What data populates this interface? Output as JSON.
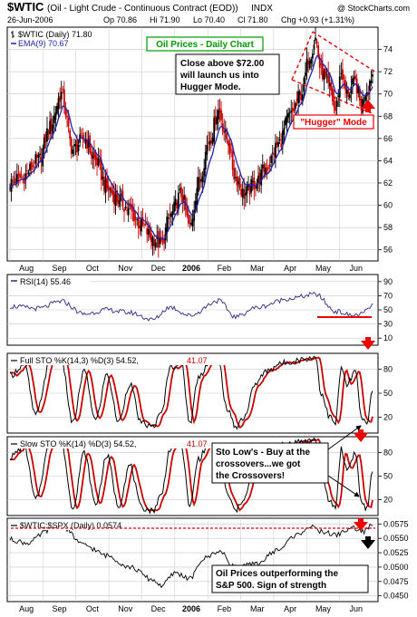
{
  "header": {
    "symbol": "$WTIC",
    "name": "(Oil - Light Crude - Continuous Contract (EOD))",
    "exchange": "INDX",
    "copyright": "@ StockCharts.com",
    "date": "26-Jun-2006",
    "open": "Op 70.86",
    "high": "Hi 71.90",
    "low": "Lo 70.40",
    "close": "Cl 71.80",
    "change": "Chg +0.93 (+1.31%)"
  },
  "price_panel": {
    "legend_main": "$WTIC (Daily) 71.80",
    "legend_ema": "EMA(9) 70.67",
    "title_box": "Oil Prices - Daily Chart",
    "note_lines": [
      "Close above $72.00",
      "will launch us into",
      "Hugger Mode."
    ],
    "hugger_label": "\"Hugger\" Mode"
  },
  "rsi_panel": {
    "legend": "RSI(14) 55.46"
  },
  "full_sto_panel": {
    "legend": "Full STO %K(14,3) %D(3) 54.52,",
    "legend_d": "41.07"
  },
  "slow_sto_panel": {
    "legend": "Slow STO %K(14) %D(3) 54.52,",
    "legend_d": "41.07",
    "note_lines": [
      "Sto Low's - Buy at the",
      "crossovers...we got",
      "the Crossovers!"
    ]
  },
  "ratio_panel": {
    "legend": "$WTIC:$SPX (Daily) 0.0574",
    "note_lines": [
      "Oil Prices outperforming the",
      "S&P 500.  Sign of strength"
    ]
  },
  "colors": {
    "up": "#000000",
    "down": "#cc0000",
    "ema": "#2222aa",
    "grid": "#c8c8c8",
    "accent_red": "#ee0000",
    "title_green": "#009900"
  },
  "chart_data": {
    "type": "line",
    "x_labels": [
      "Aug",
      "Sep",
      "Oct",
      "Nov",
      "Dec",
      "2006",
      "Feb",
      "Mar",
      "Apr",
      "May",
      "Jun"
    ],
    "price": {
      "ylim": [
        55,
        76
      ],
      "ticks": [
        56,
        58,
        60,
        62,
        64,
        66,
        68,
        70,
        72,
        74
      ],
      "anchors": [
        [
          0,
          62
        ],
        [
          8,
          62.5
        ],
        [
          20,
          64
        ],
        [
          28,
          67
        ],
        [
          36,
          70
        ],
        [
          44,
          65
        ],
        [
          52,
          66
        ],
        [
          60,
          64
        ],
        [
          68,
          61.5
        ],
        [
          76,
          60.5
        ],
        [
          84,
          59.5
        ],
        [
          92,
          58.2
        ],
        [
          100,
          57
        ],
        [
          106,
          56.5
        ],
        [
          112,
          59
        ],
        [
          120,
          61
        ],
        [
          126,
          58
        ],
        [
          132,
          62
        ],
        [
          140,
          66
        ],
        [
          146,
          68.5
        ],
        [
          152,
          66
        ],
        [
          158,
          62.5
        ],
        [
          164,
          61
        ],
        [
          172,
          62
        ],
        [
          180,
          63.5
        ],
        [
          188,
          65.5
        ],
        [
          196,
          68
        ],
        [
          204,
          70
        ],
        [
          210,
          73.5
        ],
        [
          214,
          75
        ],
        [
          218,
          72
        ],
        [
          224,
          70.5
        ],
        [
          228,
          68.5
        ],
        [
          232,
          72
        ],
        [
          236,
          70
        ],
        [
          242,
          71
        ],
        [
          246,
          69
        ],
        [
          250,
          70.5
        ],
        [
          254,
          71.8
        ]
      ]
    },
    "rsi": {
      "ylim": [
        0,
        100
      ],
      "ticks": [
        10,
        30,
        50,
        70,
        90
      ],
      "anchors": [
        [
          0,
          55
        ],
        [
          20,
          52
        ],
        [
          36,
          62
        ],
        [
          52,
          44
        ],
        [
          68,
          50
        ],
        [
          84,
          46
        ],
        [
          100,
          36
        ],
        [
          112,
          54
        ],
        [
          126,
          42
        ],
        [
          146,
          63
        ],
        [
          158,
          40
        ],
        [
          172,
          53
        ],
        [
          196,
          66
        ],
        [
          214,
          72
        ],
        [
          228,
          48
        ],
        [
          240,
          42
        ],
        [
          246,
          44
        ],
        [
          254,
          55.46
        ]
      ]
    },
    "full_sto": {
      "ylim": [
        0,
        100
      ],
      "ticks": [
        20,
        50,
        80
      ],
      "anchors": [
        [
          0,
          72
        ],
        [
          10,
          86
        ],
        [
          18,
          22
        ],
        [
          28,
          88
        ],
        [
          36,
          92
        ],
        [
          44,
          12
        ],
        [
          52,
          78
        ],
        [
          60,
          16
        ],
        [
          68,
          74
        ],
        [
          76,
          14
        ],
        [
          84,
          62
        ],
        [
          92,
          12
        ],
        [
          100,
          8
        ],
        [
          106,
          24
        ],
        [
          112,
          82
        ],
        [
          120,
          88
        ],
        [
          126,
          12
        ],
        [
          132,
          70
        ],
        [
          140,
          90
        ],
        [
          146,
          92
        ],
        [
          152,
          30
        ],
        [
          158,
          8
        ],
        [
          164,
          20
        ],
        [
          172,
          62
        ],
        [
          180,
          78
        ],
        [
          188,
          86
        ],
        [
          196,
          90
        ],
        [
          204,
          92
        ],
        [
          210,
          94
        ],
        [
          214,
          96
        ],
        [
          218,
          50
        ],
        [
          224,
          20
        ],
        [
          228,
          12
        ],
        [
          232,
          82
        ],
        [
          236,
          60
        ],
        [
          242,
          78
        ],
        [
          246,
          20
        ],
        [
          250,
          10
        ],
        [
          254,
          54.52
        ]
      ]
    },
    "slow_sto": {
      "ylim": [
        0,
        100
      ],
      "ticks": [
        20,
        50,
        80
      ],
      "anchors": [
        [
          0,
          74
        ],
        [
          10,
          88
        ],
        [
          18,
          20
        ],
        [
          28,
          90
        ],
        [
          36,
          94
        ],
        [
          44,
          10
        ],
        [
          52,
          80
        ],
        [
          60,
          14
        ],
        [
          68,
          76
        ],
        [
          76,
          12
        ],
        [
          84,
          64
        ],
        [
          92,
          10
        ],
        [
          100,
          6
        ],
        [
          106,
          26
        ],
        [
          112,
          84
        ],
        [
          120,
          90
        ],
        [
          126,
          10
        ],
        [
          132,
          72
        ],
        [
          140,
          92
        ],
        [
          146,
          94
        ],
        [
          152,
          28
        ],
        [
          158,
          6
        ],
        [
          164,
          22
        ],
        [
          172,
          64
        ],
        [
          180,
          80
        ],
        [
          188,
          88
        ],
        [
          196,
          92
        ],
        [
          204,
          94
        ],
        [
          210,
          95
        ],
        [
          214,
          97
        ],
        [
          218,
          48
        ],
        [
          224,
          18
        ],
        [
          228,
          10
        ],
        [
          232,
          84
        ],
        [
          236,
          58
        ],
        [
          242,
          80
        ],
        [
          246,
          18
        ],
        [
          250,
          8
        ],
        [
          254,
          54.52
        ]
      ]
    },
    "ratio": {
      "ylim": [
        0.044,
        0.0585
      ],
      "ticks": [
        0.045,
        0.0475,
        0.05,
        0.0525,
        0.055,
        0.0575
      ],
      "tick_labels": [
        "0.0450",
        "0.0475",
        "0.0500",
        "0.0525",
        "0.0550",
        "0.0575"
      ],
      "anchors": [
        [
          0,
          0.0548
        ],
        [
          12,
          0.0542
        ],
        [
          28,
          0.0565
        ],
        [
          36,
          0.0572
        ],
        [
          52,
          0.0538
        ],
        [
          68,
          0.052
        ],
        [
          84,
          0.05
        ],
        [
          100,
          0.0478
        ],
        [
          106,
          0.0468
        ],
        [
          116,
          0.049
        ],
        [
          126,
          0.048
        ],
        [
          136,
          0.0515
        ],
        [
          146,
          0.0528
        ],
        [
          158,
          0.05
        ],
        [
          172,
          0.0505
        ],
        [
          188,
          0.053
        ],
        [
          200,
          0.0555
        ],
        [
          210,
          0.057
        ],
        [
          218,
          0.0562
        ],
        [
          228,
          0.0556
        ],
        [
          240,
          0.0568
        ],
        [
          248,
          0.0562
        ],
        [
          254,
          0.0574
        ]
      ]
    }
  }
}
